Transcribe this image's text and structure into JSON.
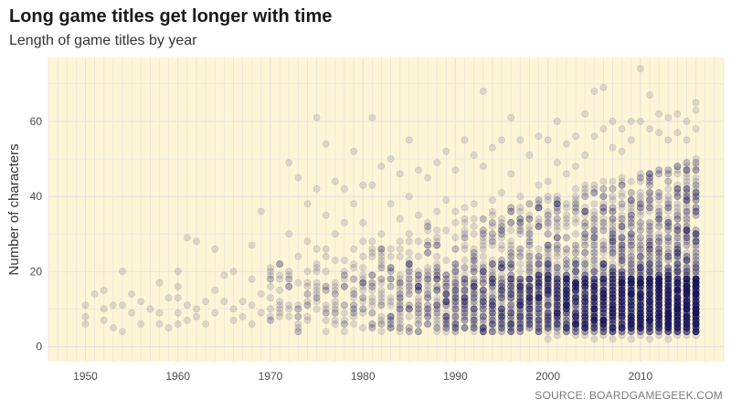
{
  "chart_data": {
    "type": "scatter",
    "title": "Long game titles get longer with time",
    "subtitle": "Length of game titles by year",
    "xlabel": "",
    "ylabel": "Number of characters",
    "source": "SOURCE: BOARDGAMEGEEK.COM",
    "xlim": [
      1946,
      2019
    ],
    "ylim": [
      -4,
      77
    ],
    "x_ticks": [
      1950,
      1960,
      1970,
      1980,
      1990,
      2000,
      2010
    ],
    "y_ticks": [
      0,
      20,
      40,
      60
    ],
    "grid": true,
    "background_color": "#fdf5d6",
    "grid_color": "#e6e4dc",
    "point_color": "#1b1a5e",
    "point_opacity": 0.13,
    "points": [
      [
        1950,
        6
      ],
      [
        1950,
        8
      ],
      [
        1950,
        11
      ],
      [
        1951,
        14
      ],
      [
        1952,
        7
      ],
      [
        1952,
        10
      ],
      [
        1952,
        15
      ],
      [
        1953,
        11
      ],
      [
        1953,
        5
      ],
      [
        1954,
        20
      ],
      [
        1954,
        4
      ],
      [
        1954,
        11
      ],
      [
        1955,
        9
      ],
      [
        1955,
        14
      ],
      [
        1956,
        6
      ],
      [
        1956,
        12
      ],
      [
        1957,
        10
      ],
      [
        1958,
        17
      ],
      [
        1958,
        6
      ],
      [
        1958,
        9
      ],
      [
        1959,
        5
      ],
      [
        1959,
        13
      ],
      [
        1960,
        20
      ],
      [
        1960,
        16
      ],
      [
        1960,
        13
      ],
      [
        1960,
        9
      ],
      [
        1960,
        6
      ],
      [
        1961,
        29
      ],
      [
        1961,
        11
      ],
      [
        1961,
        7
      ],
      [
        1962,
        28
      ],
      [
        1962,
        10
      ],
      [
        1962,
        8
      ],
      [
        1963,
        6
      ],
      [
        1963,
        12
      ],
      [
        1964,
        26
      ],
      [
        1964,
        9
      ],
      [
        1964,
        15
      ],
      [
        1965,
        19
      ],
      [
        1965,
        12
      ],
      [
        1966,
        20
      ],
      [
        1966,
        10
      ],
      [
        1966,
        7
      ],
      [
        1967,
        12
      ],
      [
        1967,
        8
      ],
      [
        1968,
        27
      ],
      [
        1968,
        18
      ],
      [
        1968,
        11
      ],
      [
        1968,
        6
      ],
      [
        1969,
        36
      ],
      [
        1969,
        14
      ],
      [
        1969,
        9
      ],
      [
        1970,
        20
      ],
      [
        1970,
        10
      ],
      [
        1970,
        7
      ],
      [
        1971,
        22
      ],
      [
        1971,
        12
      ],
      [
        1971,
        8
      ],
      [
        1972,
        49
      ],
      [
        1972,
        30
      ],
      [
        1972,
        16
      ],
      [
        1972,
        10
      ],
      [
        1973,
        45
      ],
      [
        1973,
        24
      ],
      [
        1973,
        11
      ],
      [
        1974,
        38
      ],
      [
        1974,
        28
      ],
      [
        1974,
        14
      ],
      [
        1975,
        61
      ],
      [
        1975,
        42
      ],
      [
        1975,
        26
      ],
      [
        1975,
        13
      ],
      [
        1976,
        54
      ],
      [
        1976,
        35
      ],
      [
        1976,
        20
      ],
      [
        1976,
        9
      ],
      [
        1977,
        44
      ],
      [
        1977,
        30
      ],
      [
        1977,
        15
      ],
      [
        1978,
        42
      ],
      [
        1978,
        33
      ],
      [
        1978,
        16
      ],
      [
        1979,
        52
      ],
      [
        1979,
        38
      ],
      [
        1979,
        22
      ],
      [
        1979,
        10
      ],
      [
        1980,
        43
      ],
      [
        1980,
        33
      ],
      [
        1980,
        12
      ],
      [
        1981,
        61
      ],
      [
        1981,
        43
      ],
      [
        1981,
        25
      ],
      [
        1981,
        12
      ],
      [
        1982,
        48
      ],
      [
        1982,
        30
      ],
      [
        1982,
        15
      ],
      [
        1983,
        50
      ],
      [
        1983,
        38
      ],
      [
        1983,
        20
      ],
      [
        1983,
        8
      ],
      [
        1984,
        46
      ],
      [
        1984,
        34
      ],
      [
        1984,
        13
      ],
      [
        1985,
        55
      ],
      [
        1985,
        40
      ],
      [
        1985,
        22
      ],
      [
        1985,
        10
      ],
      [
        1986,
        47
      ],
      [
        1986,
        35
      ],
      [
        1986,
        16
      ],
      [
        1987,
        45
      ],
      [
        1987,
        33
      ],
      [
        1987,
        14
      ],
      [
        1988,
        49
      ],
      [
        1988,
        36
      ],
      [
        1988,
        19
      ],
      [
        1989,
        52
      ],
      [
        1989,
        39
      ],
      [
        1989,
        12
      ],
      [
        1990,
        47
      ],
      [
        1990,
        36
      ],
      [
        1990,
        18
      ],
      [
        1991,
        55
      ],
      [
        1991,
        37
      ],
      [
        1991,
        14
      ],
      [
        1992,
        51
      ],
      [
        1992,
        38
      ],
      [
        1992,
        20
      ],
      [
        1993,
        68
      ],
      [
        1993,
        48
      ],
      [
        1993,
        26
      ],
      [
        1993,
        12
      ],
      [
        1994,
        53
      ],
      [
        1994,
        39
      ],
      [
        1994,
        17
      ],
      [
        1995,
        55
      ],
      [
        1995,
        41
      ],
      [
        1995,
        22
      ],
      [
        1996,
        61
      ],
      [
        1996,
        46
      ],
      [
        1996,
        25
      ],
      [
        1997,
        55
      ],
      [
        1997,
        40
      ],
      [
        1997,
        18
      ],
      [
        1998,
        51
      ],
      [
        1998,
        38
      ],
      [
        1998,
        21
      ],
      [
        1999,
        56
      ],
      [
        1999,
        43
      ],
      [
        1999,
        24
      ],
      [
        2000,
        55
      ],
      [
        2000,
        44
      ],
      [
        2000,
        2
      ],
      [
        2001,
        60
      ],
      [
        2001,
        49
      ],
      [
        2001,
        3
      ],
      [
        2002,
        54
      ],
      [
        2002,
        46
      ],
      [
        2002,
        4
      ],
      [
        2003,
        56
      ],
      [
        2003,
        48
      ],
      [
        2003,
        3
      ],
      [
        2004,
        62
      ],
      [
        2004,
        51
      ],
      [
        2004,
        3
      ],
      [
        2005,
        68
      ],
      [
        2005,
        56
      ],
      [
        2005,
        2
      ],
      [
        2006,
        69
      ],
      [
        2006,
        58
      ],
      [
        2006,
        3
      ],
      [
        2007,
        60
      ],
      [
        2007,
        53
      ],
      [
        2007,
        2
      ],
      [
        2008,
        58
      ],
      [
        2008,
        52
      ],
      [
        2008,
        3
      ],
      [
        2009,
        60
      ],
      [
        2009,
        55
      ],
      [
        2009,
        2
      ],
      [
        2010,
        74
      ],
      [
        2010,
        60
      ],
      [
        2010,
        3
      ],
      [
        2011,
        67
      ],
      [
        2011,
        58
      ],
      [
        2011,
        2
      ],
      [
        2012,
        62
      ],
      [
        2012,
        57
      ],
      [
        2012,
        3
      ],
      [
        2013,
        61
      ],
      [
        2013,
        55
      ],
      [
        2013,
        2
      ],
      [
        2014,
        62
      ],
      [
        2014,
        57
      ],
      [
        2014,
        3
      ],
      [
        2015,
        60
      ],
      [
        2015,
        55
      ],
      [
        2015,
        3
      ],
      [
        2016,
        65
      ],
      [
        2016,
        63
      ],
      [
        2016,
        58
      ],
      [
        2016,
        3
      ]
    ],
    "dense_band": {
      "x_range": [
        1970,
        2016
      ],
      "y_median": 9,
      "y_q_low": 4,
      "y_q_high": 18,
      "y_upper_spread": 42
    }
  }
}
